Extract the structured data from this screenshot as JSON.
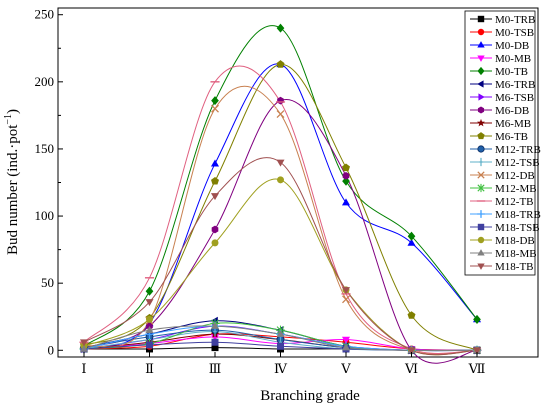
{
  "chart_data": {
    "type": "line",
    "title": "",
    "xlabel": "Branching grade",
    "ylabel": "Bud number (ind.·pot⁻¹)",
    "ylabel_main": "Bud number (ind.·pot",
    "ylabel_sup": "−1",
    "ylabel_close": ")",
    "ylim": [
      -5,
      255
    ],
    "yticks": [
      0,
      50,
      100,
      150,
      200,
      250
    ],
    "categories": [
      "Ⅰ",
      "Ⅱ",
      "Ⅲ",
      "Ⅳ",
      "Ⅴ",
      "Ⅵ",
      "Ⅶ"
    ],
    "smooth": true,
    "grid": false,
    "legend_position": "right",
    "series": [
      {
        "name": "M0-TRB",
        "color": "#000000",
        "marker": "square",
        "values": [
          1,
          1,
          2,
          1,
          1,
          0,
          0
        ]
      },
      {
        "name": "M0-TSB",
        "color": "#ff0000",
        "marker": "circle",
        "values": [
          1,
          3,
          12,
          10,
          6,
          1,
          0
        ]
      },
      {
        "name": "M0-DB",
        "color": "#0000ff",
        "marker": "triangle-up",
        "values": [
          2,
          20,
          139,
          213,
          110,
          80,
          23
        ]
      },
      {
        "name": "M0-MB",
        "color": "#ff00ff",
        "marker": "triangle-down",
        "values": [
          1,
          5,
          10,
          5,
          8,
          1,
          0
        ]
      },
      {
        "name": "M0-TB",
        "color": "#008000",
        "marker": "diamond",
        "values": [
          3,
          44,
          186,
          240,
          126,
          85,
          23
        ]
      },
      {
        "name": "M6-TRB",
        "color": "#000080",
        "marker": "triangle-left",
        "values": [
          2,
          12,
          22,
          15,
          3,
          0,
          0
        ]
      },
      {
        "name": "M6-TSB",
        "color": "#8000ff",
        "marker": "triangle-right",
        "values": [
          1,
          8,
          18,
          12,
          3,
          0,
          0
        ]
      },
      {
        "name": "M6-DB",
        "color": "#800080",
        "marker": "hexagon",
        "values": [
          2,
          18,
          90,
          186,
          130,
          0,
          0
        ]
      },
      {
        "name": "M6-MB",
        "color": "#800000",
        "marker": "star",
        "values": [
          1,
          6,
          12,
          8,
          2,
          0,
          0
        ]
      },
      {
        "name": "M6-TB",
        "color": "#808000",
        "marker": "pentagon",
        "values": [
          4,
          24,
          126,
          213,
          136,
          26,
          0
        ]
      },
      {
        "name": "M12-TRB",
        "color": "#1f5fa8",
        "marker": "ball",
        "values": [
          2,
          10,
          15,
          8,
          2,
          0,
          0
        ]
      },
      {
        "name": "M12-TSB",
        "color": "#5fb0c8",
        "marker": "dash",
        "values": [
          1,
          8,
          14,
          6,
          1,
          0,
          0
        ]
      },
      {
        "name": "M12-DB",
        "color": "#c88050",
        "marker": "x",
        "values": [
          3,
          22,
          180,
          176,
          38,
          0,
          0
        ]
      },
      {
        "name": "M12-MB",
        "color": "#40c040",
        "marker": "asterisk",
        "values": [
          1,
          5,
          20,
          15,
          3,
          0,
          0
        ]
      },
      {
        "name": "M12-TB",
        "color": "#e06080",
        "marker": "hline",
        "values": [
          6,
          54,
          200,
          185,
          42,
          1,
          0
        ]
      },
      {
        "name": "M18-TRB",
        "color": "#40a0ff",
        "marker": "plus",
        "values": [
          1,
          12,
          18,
          12,
          3,
          0,
          0
        ]
      },
      {
        "name": "M18-TSB",
        "color": "#4040a0",
        "marker": "square",
        "values": [
          1,
          4,
          6,
          3,
          1,
          0,
          0
        ]
      },
      {
        "name": "M18-DB",
        "color": "#a0a020",
        "marker": "circle",
        "values": [
          3,
          23,
          80,
          127,
          45,
          0,
          0
        ]
      },
      {
        "name": "M18-MB",
        "color": "#808080",
        "marker": "triangle-up",
        "values": [
          1,
          15,
          18,
          12,
          2,
          0,
          0
        ]
      },
      {
        "name": "M18-TB",
        "color": "#a05050",
        "marker": "triangle-down",
        "values": [
          6,
          36,
          115,
          140,
          45,
          0,
          0
        ]
      }
    ]
  }
}
